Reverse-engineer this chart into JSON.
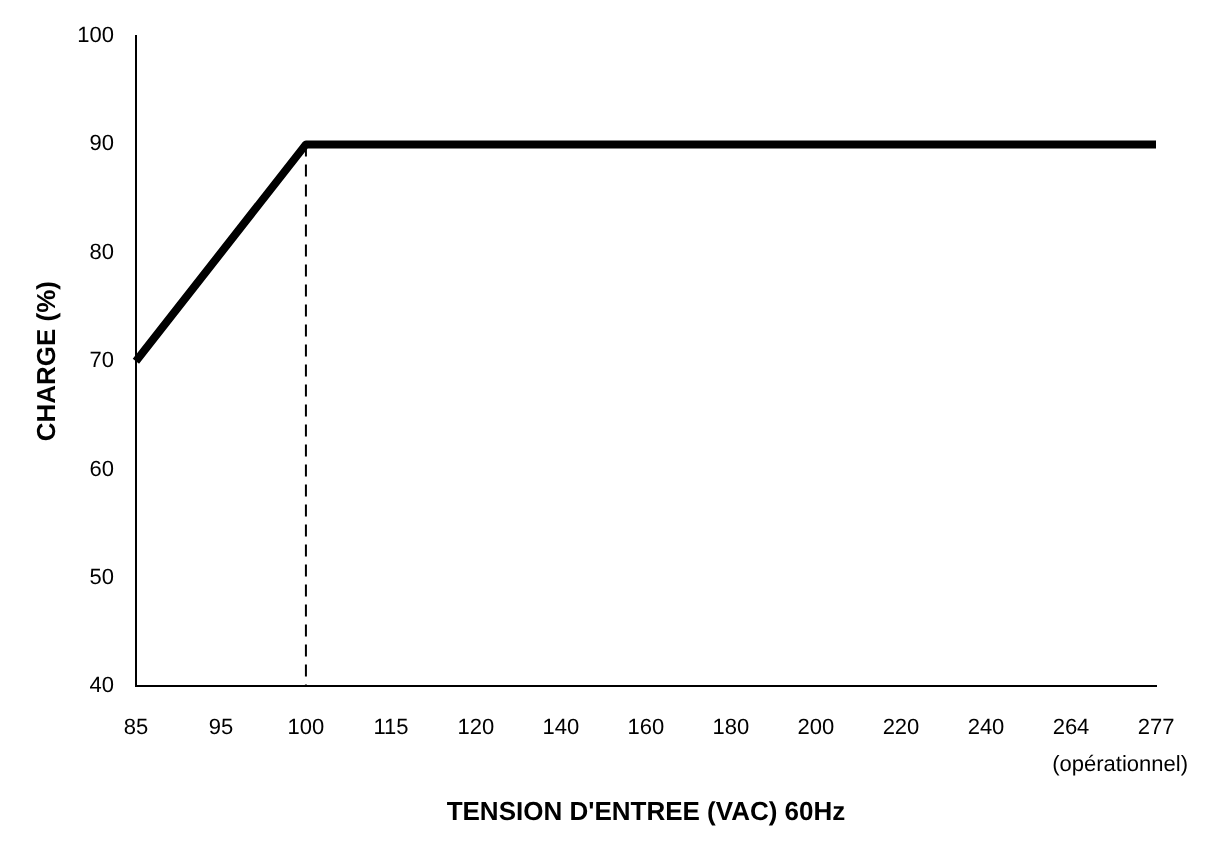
{
  "chart_data": {
    "type": "line",
    "xlabel": "TENSION D'ENTREE (VAC) 60Hz",
    "ylabel": "CHARGE (%)",
    "categories": [
      "85",
      "95",
      "100",
      "115",
      "120",
      "140",
      "160",
      "180",
      "200",
      "220",
      "240",
      "264",
      "277"
    ],
    "series": [
      {
        "color": "#000000",
        "values": [
          70,
          null,
          90,
          90,
          90,
          90,
          90,
          90,
          90,
          90,
          90,
          90,
          90
        ]
      }
    ],
    "ylim": [
      40,
      100
    ],
    "yticks": [
      40,
      50,
      60,
      70,
      80,
      90,
      100
    ],
    "ref_lines": [
      {
        "axis": "x",
        "value": "100",
        "line_style": "dashed",
        "color": "#000000"
      }
    ],
    "annotations": [
      "(opérationnel)"
    ],
    "grid": false,
    "legend": false,
    "marker": "none",
    "line_style": "solid"
  }
}
